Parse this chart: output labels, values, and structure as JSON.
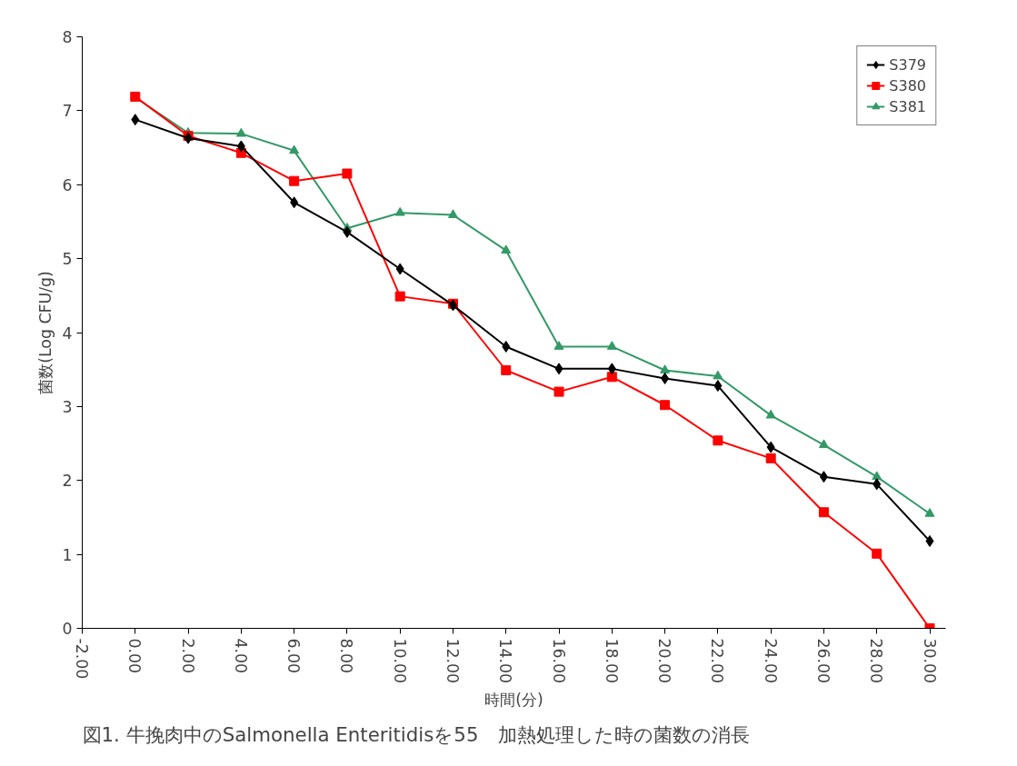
{
  "chart_data": {
    "type": "line",
    "xlabel": "時間(分)",
    "ylabel": "菌数(Log CFU/g)",
    "x": [
      0,
      2,
      4,
      6,
      8,
      10,
      12,
      14,
      16,
      18,
      20,
      22,
      24,
      26,
      28,
      30
    ],
    "series": [
      {
        "name": "S379",
        "color": "#000000",
        "marker": "diamond",
        "values": [
          6.88,
          6.63,
          6.52,
          5.76,
          5.36,
          4.86,
          4.37,
          3.81,
          3.51,
          3.51,
          3.38,
          3.28,
          2.45,
          2.05,
          1.95,
          1.18
        ]
      },
      {
        "name": "S380",
        "color": "#ff0000",
        "marker": "square",
        "values": [
          7.19,
          6.66,
          6.43,
          6.05,
          6.15,
          4.49,
          4.39,
          3.49,
          3.2,
          3.4,
          3.02,
          2.54,
          2.3,
          1.57,
          1.01,
          0
        ]
      },
      {
        "name": "S381",
        "color": "#339966",
        "marker": "triangle",
        "values": [
          7.18,
          6.7,
          6.69,
          6.46,
          5.41,
          5.62,
          5.59,
          5.11,
          3.81,
          3.81,
          3.49,
          3.41,
          2.88,
          2.48,
          2.05,
          1.55
        ]
      }
    ],
    "xlim": [
      -2,
      30.6
    ],
    "ylim": [
      0,
      8
    ],
    "xticks": [
      {
        "value": -2,
        "label": "-2.00"
      },
      {
        "value": 0,
        "label": "0.00"
      },
      {
        "value": 2,
        "label": "2.00"
      },
      {
        "value": 4,
        "label": "4.00"
      },
      {
        "value": 6,
        "label": "6.00"
      },
      {
        "value": 8,
        "label": "8.00"
      },
      {
        "value": 10,
        "label": "10.00"
      },
      {
        "value": 12,
        "label": "12.00"
      },
      {
        "value": 14,
        "label": "14.00"
      },
      {
        "value": 16,
        "label": "16.00"
      },
      {
        "value": 18,
        "label": "18.00"
      },
      {
        "value": 20,
        "label": "20.00"
      },
      {
        "value": 22,
        "label": "22.00"
      },
      {
        "value": 24,
        "label": "24.00"
      },
      {
        "value": 26,
        "label": "26.00"
      },
      {
        "value": 28,
        "label": "28.00"
      },
      {
        "value": 30,
        "label": "30.00"
      }
    ],
    "yticks": [
      0,
      1,
      2,
      3,
      4,
      5,
      6,
      7,
      8
    ],
    "grid": false,
    "legend": "top right",
    "line_style": "solid",
    "annotations": [
      "図1. 牛挽肉中のSalmonella Enteritidisを55　加熱処理した時の菌数の消長"
    ]
  }
}
